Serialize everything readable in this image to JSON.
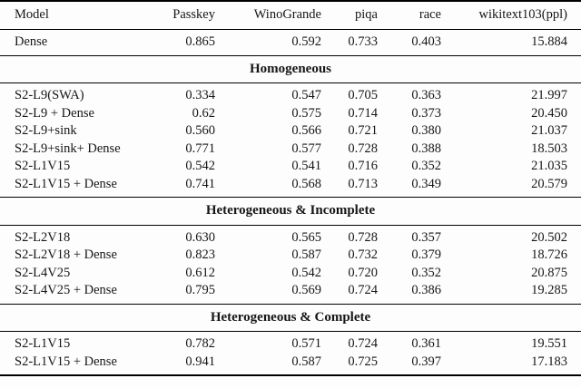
{
  "chart_data": {
    "type": "table",
    "columns": [
      "Model",
      "Passkey",
      "WinoGrande",
      "piqa",
      "race",
      "wikitext103(ppl)"
    ],
    "sections": [
      {
        "header": "",
        "rows": [
          [
            "Dense",
            "0.865",
            "0.592",
            "0.733",
            "0.403",
            "15.884"
          ]
        ]
      },
      {
        "header": "Homogeneous",
        "rows": [
          [
            "S2-L9(SWA)",
            "0.334",
            "0.547",
            "0.705",
            "0.363",
            "21.997"
          ],
          [
            "S2-L9 + Dense",
            "0.62",
            "0.575",
            "0.714",
            "0.373",
            "20.450"
          ],
          [
            "S2-L9+sink",
            "0.560",
            "0.566",
            "0.721",
            "0.380",
            "21.037"
          ],
          [
            "S2-L9+sink+ Dense",
            "0.771",
            "0.577",
            "0.728",
            "0.388",
            "18.503"
          ],
          [
            "S2-L1V15",
            "0.542",
            "0.541",
            "0.716",
            "0.352",
            "21.035"
          ],
          [
            "S2-L1V15 + Dense",
            "0.741",
            "0.568",
            "0.713",
            "0.349",
            "20.579"
          ]
        ]
      },
      {
        "header": "Heterogeneous & Incomplete",
        "rows": [
          [
            "S2-L2V18",
            "0.630",
            "0.565",
            "0.728",
            "0.357",
            "20.502"
          ],
          [
            "S2-L2V18 + Dense",
            "0.823",
            "0.587",
            "0.732",
            "0.379",
            "18.726"
          ],
          [
            "S2-L4V25",
            "0.612",
            "0.542",
            "0.720",
            "0.352",
            "20.875"
          ],
          [
            "S2-L4V25 + Dense",
            "0.795",
            "0.569",
            "0.724",
            "0.386",
            "19.285"
          ]
        ]
      },
      {
        "header": "Heterogeneous & Complete",
        "rows": [
          [
            "S2-L1V15",
            "0.782",
            "0.571",
            "0.724",
            "0.361",
            "19.551"
          ],
          [
            "S2-L1V15 + Dense",
            "0.941",
            "0.587",
            "0.725",
            "0.397",
            "17.183"
          ]
        ]
      }
    ]
  }
}
